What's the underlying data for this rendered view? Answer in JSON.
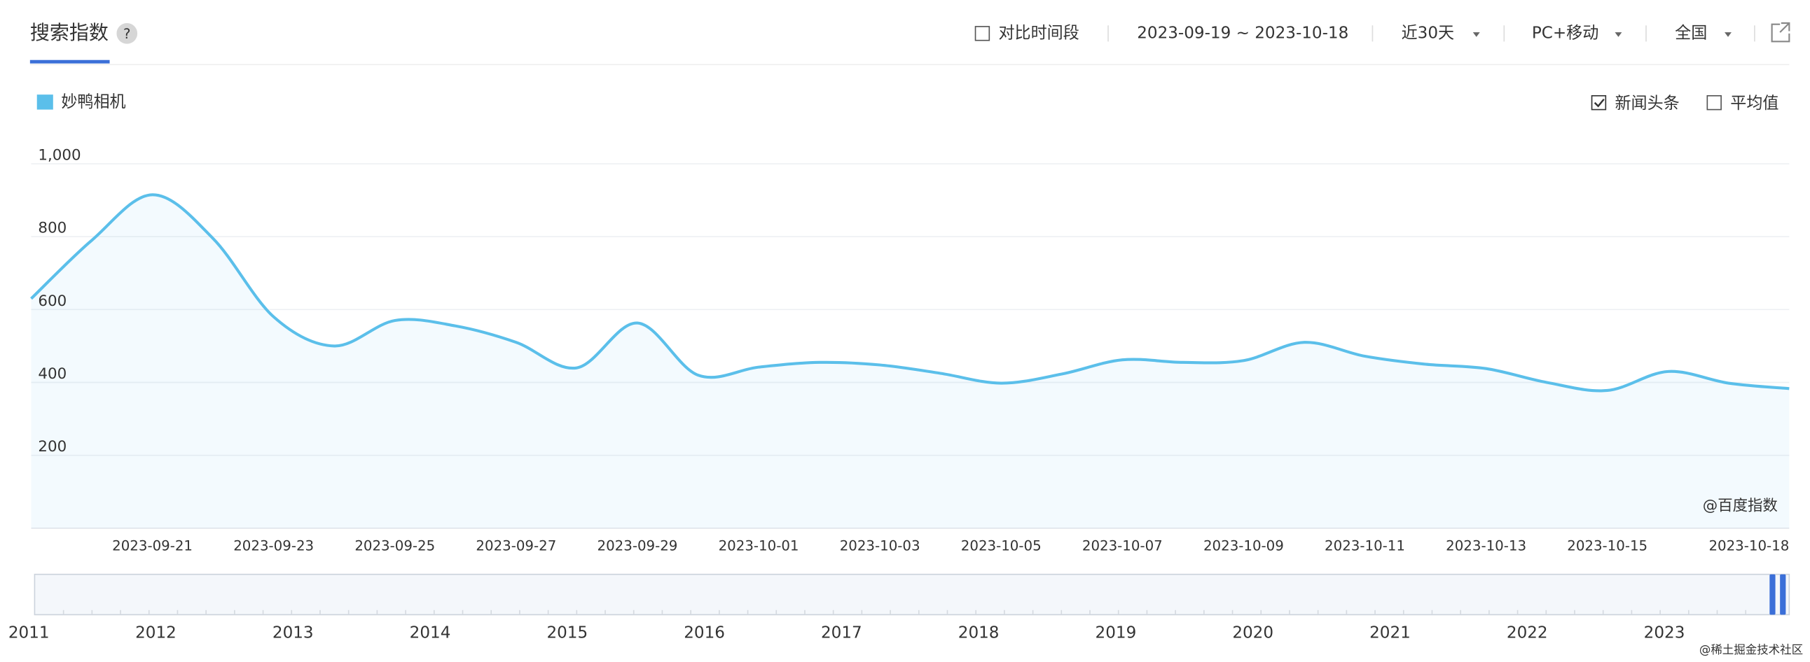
{
  "header": {
    "tab": "搜索指数",
    "help": "?",
    "compare": "对比时间段",
    "date_range": "2023-09-19 ~ 2023-10-18",
    "period": "近30天",
    "device": "PC+移动",
    "region": "全国"
  },
  "options": {
    "news": "新闻头条",
    "average": "平均值"
  },
  "chart_data": {
    "type": "line",
    "categories": [
      null,
      null,
      "2023-09-21",
      null,
      "2023-09-23",
      null,
      "2023-09-25",
      null,
      "2023-09-27",
      null,
      "2023-09-29",
      null,
      "2023-10-01",
      null,
      "2023-10-03",
      null,
      "2023-10-05",
      null,
      "2023-10-07",
      null,
      "2023-10-09",
      null,
      "2023-10-11",
      null,
      "2023-10-13",
      null,
      "2023-10-15",
      null,
      null,
      "2023-10-18"
    ],
    "series": [
      {
        "name": "妙鸭相机",
        "color": "#5bbfea",
        "values": [
          630,
          790,
          915,
          795,
          580,
          500,
          570,
          555,
          510,
          440,
          563,
          420,
          442,
          455,
          448,
          425,
          398,
          423,
          462,
          455,
          460,
          510,
          472,
          450,
          438,
          400,
          378,
          430,
          398,
          383
        ]
      }
    ],
    "ylim": [
      0,
      1000
    ],
    "yticks": [
      200,
      400,
      600,
      800,
      {
        "value": 1000,
        "label": "1,000"
      }
    ],
    "grid": true,
    "watermark": "@百度指数"
  },
  "navigator": {
    "years": [
      "2011",
      "2012",
      "2013",
      "2014",
      "2015",
      "2016",
      "2017",
      "2018",
      "2019",
      "2020",
      "2021",
      "2022",
      "2023"
    ]
  },
  "footer": {
    "source": "@稀土掘金技术社区"
  }
}
